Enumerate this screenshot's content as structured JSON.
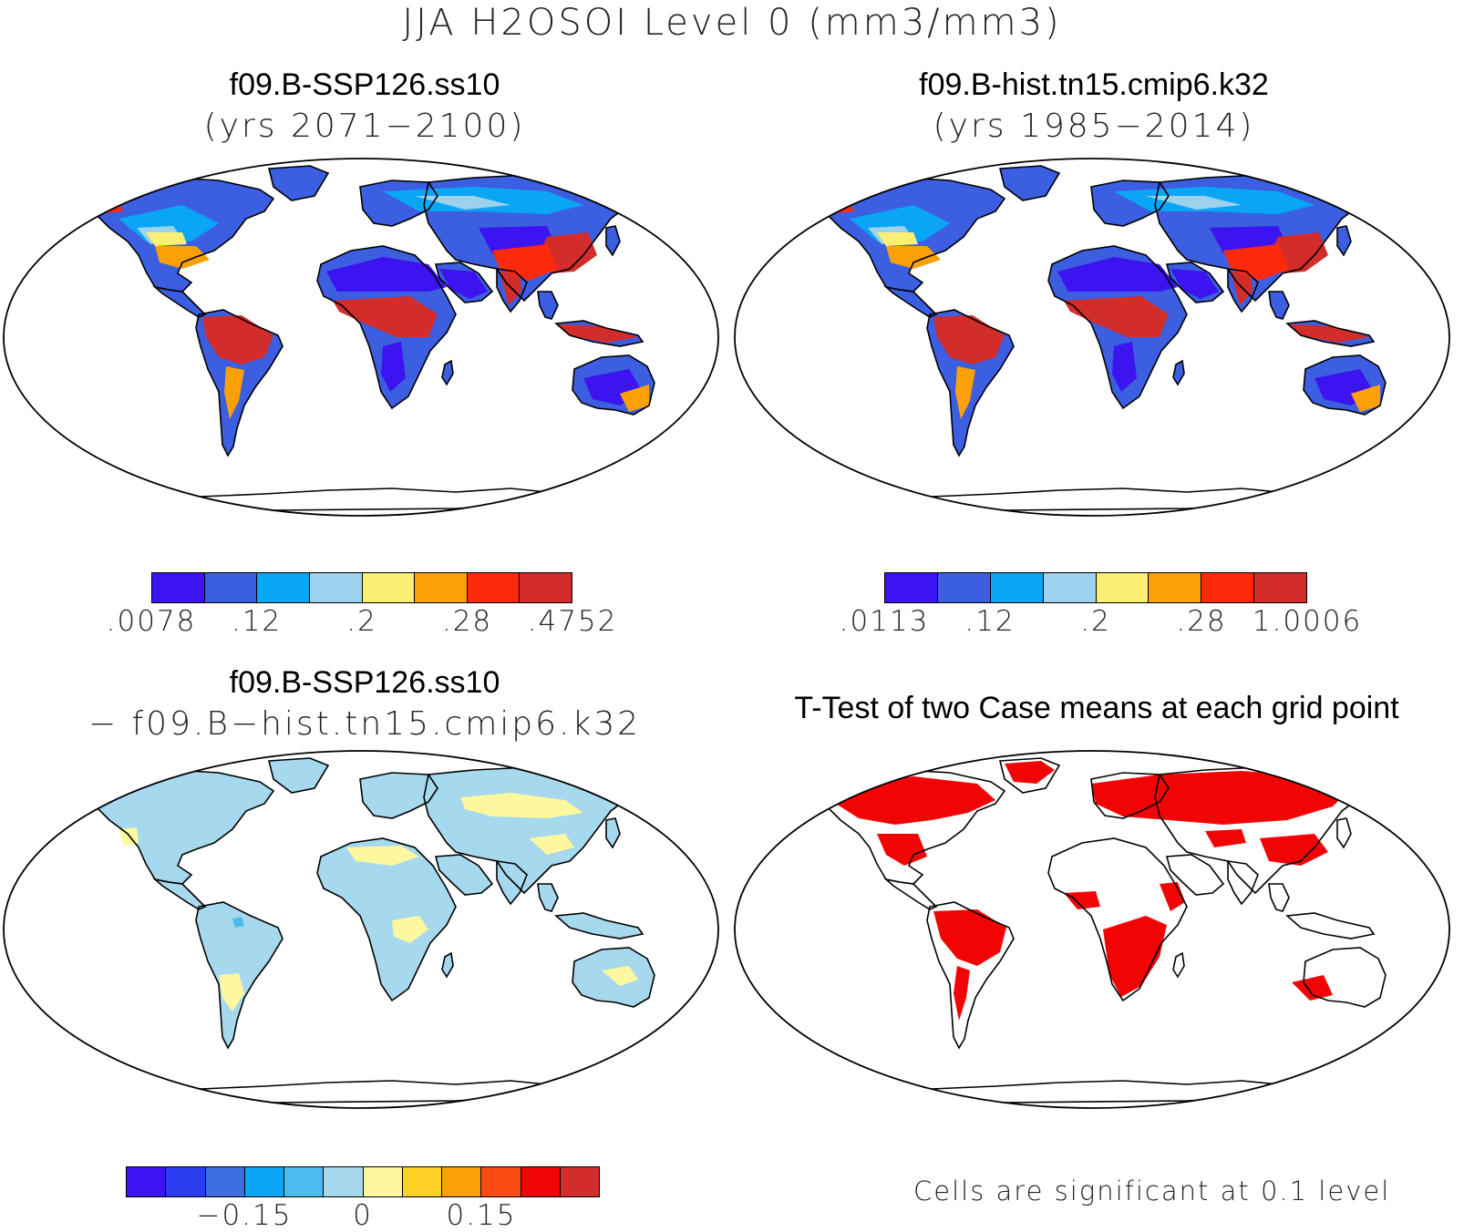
{
  "figure": {
    "title": "JJA H2OSOI Level 0 (mm3/mm3)"
  },
  "panels": {
    "top_left": {
      "case": "f09.B-SSP126.ss10",
      "years": "(yrs 2071−2100)",
      "colorbar": {
        "colors": [
          "#3b14f0",
          "#3c5ee0",
          "#0aa6f5",
          "#9dd2ec",
          "#fbf074",
          "#fca008",
          "#fc2a0a",
          "#d22d2a"
        ],
        "ticks": [
          ".0078",
          ".12",
          ".2",
          ".28",
          ".4752"
        ]
      }
    },
    "top_right": {
      "case": "f09.B-hist.tn15.cmip6.k32",
      "years": "(yrs 1985−2014)",
      "colorbar": {
        "colors": [
          "#3b14f0",
          "#3c5ee0",
          "#0aa6f5",
          "#9dd2ec",
          "#fbf074",
          "#fca008",
          "#fc2a0a",
          "#d22d2a"
        ],
        "ticks": [
          ".0113",
          ".12",
          ".2",
          ".28",
          "1.0006"
        ]
      }
    },
    "bottom_left": {
      "case": "f09.B-SSP126.ss10",
      "minus_case": "− f09.B−hist.tn15.cmip6.k32",
      "colorbar": {
        "colors": [
          "#3b14f0",
          "#2a3cf0",
          "#3c6ee0",
          "#0aa6f5",
          "#4cbcf0",
          "#a6d8ee",
          "#fdf7a0",
          "#fcd024",
          "#fca008",
          "#fc4a14",
          "#f20404",
          "#d22d2a"
        ],
        "ticks": [
          "−0.15",
          "0",
          "0.15"
        ]
      }
    },
    "bottom_right": {
      "title": "T-Test of two Case means at each grid point",
      "note": "Cells are significant at 0.1 level",
      "significant_color": "#f20404"
    }
  }
}
